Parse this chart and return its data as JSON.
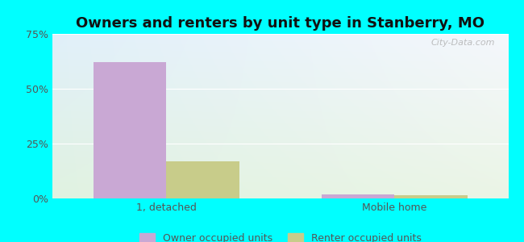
{
  "title": "Owners and renters by unit type in Stanberry, MO",
  "title_fontsize": 13,
  "categories": [
    "1, detached",
    "Mobile home"
  ],
  "owner_values": [
    62,
    2
  ],
  "renter_values": [
    17,
    1.5
  ],
  "owner_color": "#c9a8d4",
  "renter_color": "#c8cc8a",
  "ylim": [
    0,
    75
  ],
  "yticks": [
    0,
    25,
    50,
    75
  ],
  "yticklabels": [
    "0%",
    "25%",
    "50%",
    "75%"
  ],
  "bar_width": 0.32,
  "bg_color_topleft": "#ddeef8",
  "bg_color_bottomright": "#dff0df",
  "outer_bg": "#00ffff",
  "legend_labels": [
    "Owner occupied units",
    "Renter occupied units"
  ],
  "watermark": "City-Data.com",
  "gridline_color": "#ffffff",
  "tick_color": "#555555",
  "tick_fontsize": 9
}
